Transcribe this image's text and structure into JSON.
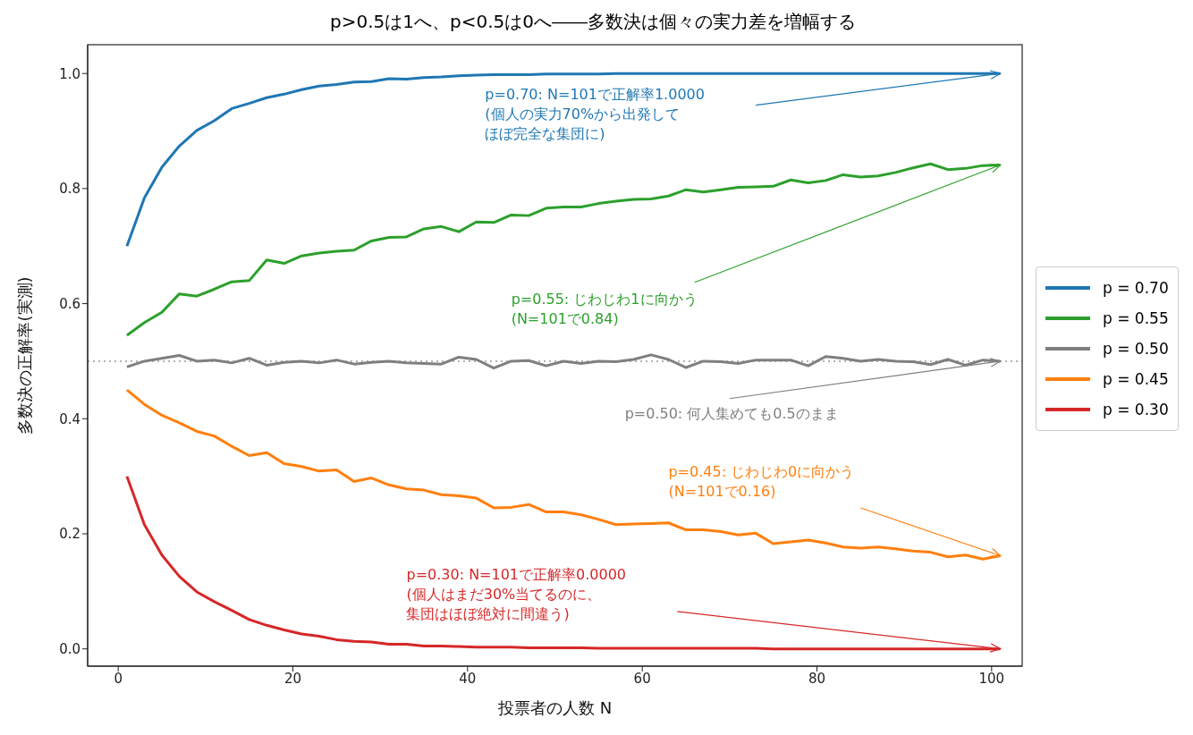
{
  "chart_data": {
    "type": "line",
    "title": "p>0.5は1へ、p<0.5は0へ――多数決は個々の実力差を増幅する",
    "xlabel": "投票者の人数 N",
    "ylabel": "多数決の正解率(実測)",
    "x": [
      1,
      3,
      5,
      7,
      9,
      11,
      13,
      15,
      17,
      19,
      21,
      23,
      25,
      27,
      29,
      31,
      33,
      35,
      37,
      39,
      41,
      43,
      45,
      47,
      49,
      51,
      53,
      55,
      57,
      59,
      61,
      63,
      65,
      67,
      69,
      71,
      73,
      75,
      77,
      79,
      81,
      83,
      85,
      87,
      89,
      91,
      93,
      95,
      97,
      99,
      101
    ],
    "series": [
      {
        "name": "p = 0.70",
        "color": "#1f77b4",
        "values": [
          0.7,
          0.784,
          0.837,
          0.874,
          0.901,
          0.918,
          0.939,
          0.948,
          0.958,
          0.964,
          0.972,
          0.978,
          0.981,
          0.985,
          0.986,
          0.991,
          0.99,
          0.993,
          0.994,
          0.996,
          0.997,
          0.998,
          0.998,
          0.998,
          0.999,
          0.999,
          0.999,
          0.999,
          1.0,
          1.0,
          1.0,
          1.0,
          1.0,
          1.0,
          1.0,
          1.0,
          1.0,
          1.0,
          1.0,
          1.0,
          1.0,
          1.0,
          1.0,
          1.0,
          1.0,
          1.0,
          1.0,
          1.0,
          1.0,
          1.0,
          1.0
        ]
      },
      {
        "name": "p = 0.55",
        "color": "#2ca02c",
        "values": [
          0.545,
          0.567,
          0.585,
          0.617,
          0.613,
          0.625,
          0.638,
          0.64,
          0.676,
          0.67,
          0.683,
          0.688,
          0.691,
          0.693,
          0.709,
          0.715,
          0.716,
          0.73,
          0.734,
          0.725,
          0.742,
          0.741,
          0.754,
          0.753,
          0.766,
          0.768,
          0.768,
          0.774,
          0.778,
          0.781,
          0.782,
          0.787,
          0.798,
          0.794,
          0.798,
          0.802,
          0.803,
          0.804,
          0.815,
          0.81,
          0.814,
          0.824,
          0.82,
          0.822,
          0.828,
          0.836,
          0.843,
          0.833,
          0.835,
          0.84,
          0.841
        ]
      },
      {
        "name": "p = 0.50",
        "color": "#7f7f7f",
        "values": [
          0.49,
          0.5,
          0.505,
          0.51,
          0.5,
          0.502,
          0.497,
          0.505,
          0.493,
          0.498,
          0.5,
          0.497,
          0.502,
          0.495,
          0.498,
          0.5,
          0.497,
          0.496,
          0.495,
          0.507,
          0.503,
          0.488,
          0.5,
          0.501,
          0.492,
          0.5,
          0.496,
          0.5,
          0.499,
          0.503,
          0.511,
          0.503,
          0.489,
          0.5,
          0.499,
          0.496,
          0.502,
          0.502,
          0.502,
          0.492,
          0.508,
          0.505,
          0.5,
          0.503,
          0.5,
          0.499,
          0.494,
          0.503,
          0.493,
          0.502,
          0.5
        ]
      },
      {
        "name": "p = 0.45",
        "color": "#ff7f0e",
        "values": [
          0.45,
          0.425,
          0.406,
          0.393,
          0.378,
          0.37,
          0.352,
          0.336,
          0.341,
          0.322,
          0.317,
          0.309,
          0.311,
          0.291,
          0.297,
          0.285,
          0.278,
          0.276,
          0.268,
          0.266,
          0.262,
          0.245,
          0.246,
          0.251,
          0.238,
          0.238,
          0.233,
          0.225,
          0.216,
          0.217,
          0.218,
          0.219,
          0.207,
          0.207,
          0.204,
          0.198,
          0.201,
          0.183,
          0.186,
          0.189,
          0.184,
          0.177,
          0.175,
          0.177,
          0.174,
          0.17,
          0.168,
          0.16,
          0.163,
          0.156,
          0.162
        ]
      },
      {
        "name": "p = 0.30",
        "color": "#d62728",
        "values": [
          0.3,
          0.216,
          0.163,
          0.126,
          0.099,
          0.082,
          0.067,
          0.051,
          0.041,
          0.033,
          0.026,
          0.022,
          0.016,
          0.013,
          0.012,
          0.008,
          0.008,
          0.005,
          0.005,
          0.004,
          0.003,
          0.003,
          0.003,
          0.002,
          0.002,
          0.002,
          0.002,
          0.001,
          0.001,
          0.001,
          0.001,
          0.001,
          0.001,
          0.001,
          0.001,
          0.001,
          0.001,
          0.0,
          0.0,
          0.0,
          0.0,
          0.0,
          0.0,
          0.0,
          0.0,
          0.0,
          0.0,
          0.0,
          0.0,
          0.0,
          0.0
        ]
      }
    ],
    "xlim": [
      -3.5,
      103.5
    ],
    "xticks": [
      0,
      20,
      40,
      60,
      80,
      100
    ],
    "ylim": [
      -0.03,
      1.05
    ],
    "yticks": [
      {
        "value": 0,
        "label": "0.0"
      },
      {
        "value": 0.2,
        "label": "0.2"
      },
      {
        "value": 0.4,
        "label": "0.4"
      },
      {
        "value": 0.6,
        "label": "0.6"
      },
      {
        "value": 0.8,
        "label": "0.8"
      },
      {
        "value": 1.0,
        "label": "1.0"
      }
    ],
    "ref_lines": [
      {
        "axis": "y",
        "value": 0.5,
        "color": "#999999",
        "line_style": "dotted"
      }
    ],
    "annotations": [
      "p=0.70: N=101で正解率1.0000\n(個人の実力70%から出発してほぼ完全な集団に)",
      {
        "text": "p=0.55: じわじわ1に向かう\n(N=101で0.84)",
        "x": 101,
        "y": 0.841
      },
      {
        "text": "p=0.50: 何人集めても0.5のまま",
        "x": 101,
        "y": 0.5
      },
      "p=0.45: じわじわ0に向かう\n(N=101で0.16)",
      "p=0.30: N=101で正解率0.0000\n(個人はまだ30%当てるのに、集団はほぼ絶対に間違う)"
    ],
    "legend": "right",
    "grid": false,
    "line_style": "solid",
    "marker": "none"
  }
}
